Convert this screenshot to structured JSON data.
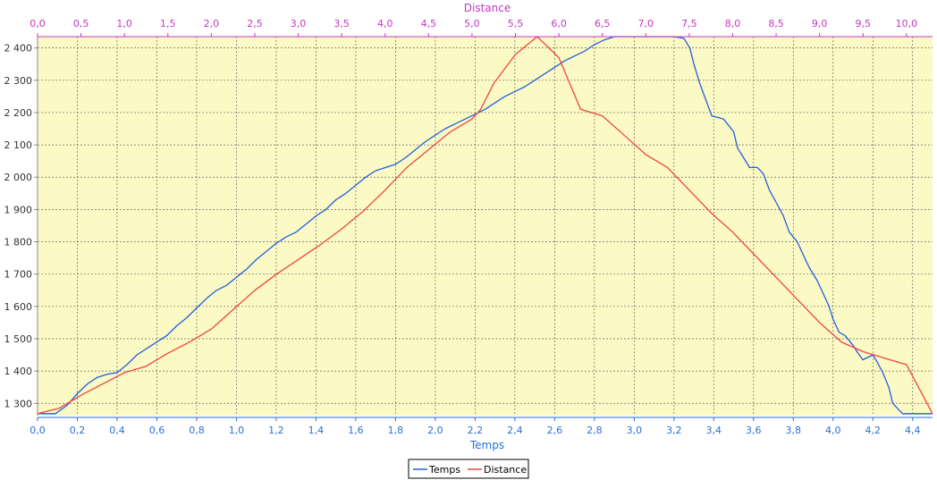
{
  "chart_data": {
    "type": "line",
    "xlabel_bottom": "Temps",
    "xlabel_top": "Distance",
    "x_bottom_range": [
      0,
      4.5
    ],
    "x_top_range": [
      0,
      10.3
    ],
    "ylim": [
      1262,
      2435
    ],
    "x_bottom_ticks": [
      "0,0",
      "0,2",
      "0,4",
      "0,6",
      "0,8",
      "1,0",
      "1,2",
      "1,4",
      "1,6",
      "1,8",
      "2,0",
      "2,2",
      "2,4",
      "2,6",
      "2,8",
      "3,0",
      "3,2",
      "3,4",
      "3,6",
      "3,8",
      "4,0",
      "4,2",
      "4,4"
    ],
    "x_top_ticks": [
      "0,0",
      "0,5",
      "1,0",
      "1,5",
      "2,0",
      "2,5",
      "3,0",
      "3,5",
      "4,0",
      "4,5",
      "5,0",
      "5,5",
      "6,0",
      "6,5",
      "7,0",
      "7,5",
      "8,0",
      "8,5",
      "9,0",
      "9,5",
      "10,0"
    ],
    "y_ticks": [
      "1 300",
      "1 400",
      "1 500",
      "1 600",
      "1 700",
      "1 800",
      "1 900",
      "2 000",
      "2 100",
      "2 200",
      "2 300",
      "2 400"
    ],
    "grid": true,
    "legend_position": "bottom-center",
    "colors": {
      "plot_background": "#fcfac4",
      "temps": "#1f5fe0",
      "distance": "#ee4444",
      "top_axis": "#cc33cc",
      "bottom_axis": "#2a6fd6",
      "grid": "#666666"
    },
    "series": [
      {
        "name": "Temps",
        "axis": "bottom",
        "x": [
          0,
          0.09,
          0.15,
          0.2,
          0.25,
          0.3,
          0.35,
          0.4,
          0.45,
          0.5,
          0.55,
          0.6,
          0.65,
          0.7,
          0.75,
          0.8,
          0.85,
          0.9,
          0.95,
          1.0,
          1.05,
          1.1,
          1.15,
          1.2,
          1.25,
          1.3,
          1.35,
          1.4,
          1.45,
          1.5,
          1.55,
          1.6,
          1.65,
          1.7,
          1.75,
          1.8,
          1.85,
          1.9,
          1.95,
          2.0,
          2.05,
          2.1,
          2.15,
          2.2,
          2.25,
          2.3,
          2.35,
          2.4,
          2.45,
          2.5,
          2.55,
          2.6,
          2.65,
          2.7,
          2.75,
          2.8,
          2.85,
          2.9,
          3.2,
          3.25,
          3.28,
          3.3,
          3.33,
          3.36,
          3.39,
          3.42,
          3.45,
          3.5,
          3.52,
          3.55,
          3.58,
          3.62,
          3.65,
          3.68,
          3.72,
          3.75,
          3.78,
          3.82,
          3.85,
          3.88,
          3.92,
          3.95,
          3.98,
          4.0,
          4.03,
          4.06,
          4.1,
          4.12,
          4.15,
          4.2,
          4.22,
          4.25,
          4.28,
          4.3,
          4.35,
          4.5
        ],
        "values": [
          1268,
          1268,
          1295,
          1330,
          1360,
          1380,
          1390,
          1395,
          1420,
          1450,
          1470,
          1490,
          1510,
          1540,
          1565,
          1595,
          1625,
          1650,
          1665,
          1690,
          1715,
          1745,
          1770,
          1795,
          1815,
          1830,
          1855,
          1880,
          1900,
          1930,
          1950,
          1975,
          2000,
          2020,
          2030,
          2040,
          2060,
          2085,
          2110,
          2130,
          2150,
          2165,
          2180,
          2195,
          2210,
          2230,
          2250,
          2265,
          2280,
          2300,
          2320,
          2340,
          2360,
          2375,
          2390,
          2410,
          2425,
          2435,
          2435,
          2430,
          2400,
          2350,
          2290,
          2240,
          2190,
          2185,
          2180,
          2140,
          2090,
          2060,
          2030,
          2030,
          2010,
          1960,
          1915,
          1880,
          1830,
          1800,
          1760,
          1720,
          1680,
          1640,
          1600,
          1560,
          1520,
          1510,
          1480,
          1460,
          1435,
          1450,
          1430,
          1395,
          1350,
          1300,
          1268,
          1268
        ]
      },
      {
        "name": "Distance",
        "axis": "top",
        "x": [
          0,
          0.25,
          0.5,
          0.75,
          1.0,
          1.25,
          1.5,
          1.75,
          2.0,
          2.25,
          2.5,
          2.75,
          3.0,
          3.25,
          3.5,
          3.75,
          4.0,
          4.25,
          4.5,
          4.75,
          5.0,
          5.1,
          5.25,
          5.5,
          5.75,
          6.0,
          6.25,
          6.5,
          6.75,
          7.0,
          7.25,
          7.5,
          7.75,
          8.0,
          8.25,
          8.5,
          8.75,
          9.0,
          9.25,
          9.5,
          9.75,
          10.0,
          10.3
        ],
        "values": [
          1268,
          1285,
          1325,
          1360,
          1395,
          1415,
          1455,
          1490,
          1530,
          1590,
          1650,
          1700,
          1745,
          1790,
          1840,
          1895,
          1960,
          2030,
          2085,
          2140,
          2180,
          2210,
          2290,
          2380,
          2435,
          2370,
          2210,
          2190,
          2130,
          2070,
          2030,
          1960,
          1890,
          1830,
          1760,
          1690,
          1620,
          1550,
          1490,
          1460,
          1440,
          1420,
          1268
        ]
      }
    ]
  }
}
